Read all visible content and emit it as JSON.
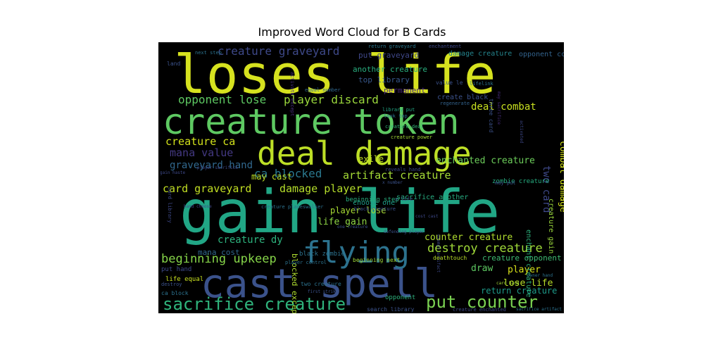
{
  "chart_data": {
    "type": "wordcloud",
    "title": "Improved Word Cloud for B Cards",
    "background": "#000000",
    "colormap": "viridis",
    "words": [
      {
        "text": "loses life",
        "color": "#d6e21f"
      },
      {
        "text": "creature token",
        "color": "#5ec962"
      },
      {
        "text": "deal damage",
        "color": "#bddf26"
      },
      {
        "text": "gain life",
        "color": "#21a685"
      },
      {
        "text": "cast spell",
        "color": "#3b528b"
      },
      {
        "text": "flying",
        "color": "#2c728e"
      },
      {
        "text": "sacrifice creature",
        "color": "#2fb47c"
      },
      {
        "text": "put counter",
        "color": "#7ad151"
      },
      {
        "text": "destroy creature",
        "color": "#a0da39"
      },
      {
        "text": "beginning upkeep",
        "color": "#86d549"
      },
      {
        "text": "creature graveyard",
        "color": "#3e4989"
      },
      {
        "text": "opponent lose",
        "color": "#5ec962"
      },
      {
        "text": "player discard",
        "color": "#9bd93c"
      },
      {
        "text": "card graveyard",
        "color": "#c2df23"
      },
      {
        "text": "damage player",
        "color": "#b5de2b"
      },
      {
        "text": "ca blocked",
        "color": "#2a788e"
      },
      {
        "text": "artifact creature",
        "color": "#a5db36"
      },
      {
        "text": "mana value",
        "color": "#443983"
      },
      {
        "text": "creature ca",
        "color": "#d2e21b"
      },
      {
        "text": "graveyard hand",
        "color": "#31688e"
      },
      {
        "text": "deal combat",
        "color": "#c8e020"
      },
      {
        "text": "enchanted creature",
        "color": "#6ccd5a"
      },
      {
        "text": "combat damage",
        "color": "#d2e21b"
      },
      {
        "text": "two card",
        "color": "#3e4989"
      },
      {
        "text": "counter creature",
        "color": "#b0dd2f"
      },
      {
        "text": "creature dy",
        "color": "#2db27d"
      },
      {
        "text": "life gain",
        "color": "#8ed645"
      },
      {
        "text": "player lose",
        "color": "#a8db34"
      },
      {
        "text": "may cast",
        "color": "#bddf26"
      },
      {
        "text": "exile",
        "color": "#c2df23"
      },
      {
        "text": "put graveyard",
        "color": "#3f4788"
      },
      {
        "text": "another creature",
        "color": "#29af7f"
      },
      {
        "text": "top library",
        "color": "#38588c"
      },
      {
        "text": "permanent",
        "color": "#482878"
      },
      {
        "text": "damage creature",
        "color": "#25858e"
      },
      {
        "text": "create black",
        "color": "#3b528b"
      },
      {
        "text": "choose one",
        "color": "#1f9e89"
      },
      {
        "text": "draw",
        "color": "#5ec962"
      },
      {
        "text": "player",
        "color": "#d8e219"
      },
      {
        "text": "lose life",
        "color": "#b8de29"
      },
      {
        "text": "return creature",
        "color": "#1e9b8a"
      },
      {
        "text": "creature opponent",
        "color": "#3fbc73"
      },
      {
        "text": "beginning step",
        "color": "#29af7f"
      },
      {
        "text": "sacrifice another",
        "color": "#27ad81"
      },
      {
        "text": "zombie creature",
        "color": "#27ad81"
      },
      {
        "text": "enchant creature",
        "color": "#2db27d"
      },
      {
        "text": "creature gain",
        "color": "#9bd93c"
      },
      {
        "text": "creature creature",
        "color": "#34b679"
      },
      {
        "text": "mana cost",
        "color": "#31688e"
      },
      {
        "text": "blocked except",
        "color": "#addc30"
      },
      {
        "text": "opponent control",
        "color": "#33638d"
      },
      {
        "text": "return graveyard",
        "color": "#2a788e"
      },
      {
        "text": "enchantment",
        "color": "#3e4989"
      },
      {
        "text": "lifelink",
        "color": "#2c728e"
      },
      {
        "text": "next step",
        "color": "#2c728e"
      },
      {
        "text": "land",
        "color": "#3b528b"
      },
      {
        "text": "equal number",
        "color": "#31688e"
      },
      {
        "text": "value le",
        "color": "#3b528b"
      },
      {
        "text": "regenerate",
        "color": "#33638d"
      },
      {
        "text": "creature deal",
        "color": "#35b779"
      },
      {
        "text": "creature power",
        "color": "#a5db36"
      },
      {
        "text": "library put",
        "color": "#22a884"
      },
      {
        "text": "look top",
        "color": "#2c728e"
      },
      {
        "text": "reveals hand",
        "color": "#3e4989"
      },
      {
        "text": "creature planeswalker",
        "color": "#2c728e"
      },
      {
        "text": "activate except",
        "color": "#472d7b"
      },
      {
        "text": "may sacrifice",
        "color": "#472d7b"
      },
      {
        "text": "three card",
        "color": "#3b528b"
      },
      {
        "text": "activated",
        "color": "#3e4989"
      },
      {
        "text": "gain haste",
        "color": "#3e4989"
      },
      {
        "text": "player sacrifice",
        "color": "#3e4989"
      },
      {
        "text": "x number",
        "color": "#3b528b"
      },
      {
        "text": "x life",
        "color": "#3b528b"
      },
      {
        "text": "may put",
        "color": "#3b528b"
      },
      {
        "text": "card library",
        "color": "#3e4989"
      },
      {
        "text": "hand choose",
        "color": "#3e4989"
      },
      {
        "text": "black creature",
        "color": "#3b528b"
      },
      {
        "text": "cost cast",
        "color": "#3e4989"
      },
      {
        "text": "one creature",
        "color": "#3b528b"
      },
      {
        "text": "defending player",
        "color": "#3b528b"
      },
      {
        "text": "exempt artifact",
        "color": "#3e4989"
      },
      {
        "text": "deathtouch",
        "color": "#b8de29"
      },
      {
        "text": "player control",
        "color": "#2c728e"
      },
      {
        "text": "beginning next",
        "color": "#a0da39"
      },
      {
        "text": "black zombie",
        "color": "#2c728e"
      },
      {
        "text": "put hand",
        "color": "#3e4989"
      },
      {
        "text": "life equal",
        "color": "#c8e020"
      },
      {
        "text": "destroy",
        "color": "#3b528b"
      },
      {
        "text": "ca block",
        "color": "#2c728e"
      },
      {
        "text": "two creature",
        "color": "#2c728e"
      },
      {
        "text": "first strike",
        "color": "#3b528b"
      },
      {
        "text": "opponent",
        "color": "#2db27d"
      },
      {
        "text": "card hand",
        "color": "#a5db36"
      },
      {
        "text": "owner hand",
        "color": "#2c728e"
      },
      {
        "text": "creature enchanted",
        "color": "#3e4989"
      },
      {
        "text": "sacrifice artifact",
        "color": "#2c728e"
      },
      {
        "text": "search library",
        "color": "#3b528b"
      }
    ]
  }
}
